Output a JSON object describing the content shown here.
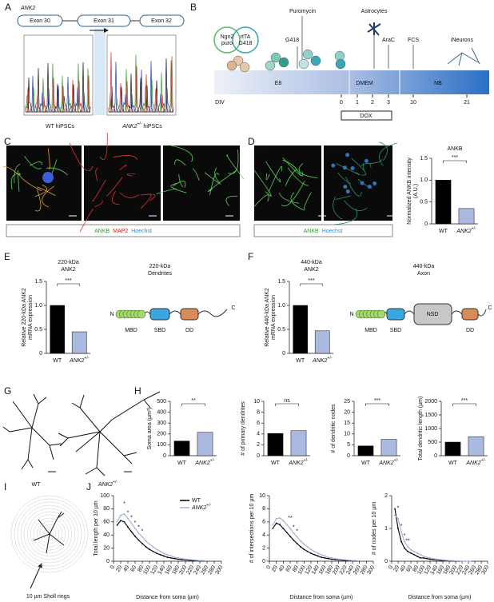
{
  "figure": {
    "panel_labels": [
      "A",
      "B",
      "C",
      "D",
      "E",
      "F",
      "G",
      "H",
      "I",
      "J"
    ],
    "a": {
      "gene": "ANK2",
      "exons": [
        "Exon 30",
        "Exon 31",
        "Exon 32"
      ],
      "captions": [
        "WT hiPSCs",
        {
          "name": "ANK2",
          "sup": "+/-",
          "rest": " hiPSCs"
        }
      ]
    },
    "b": {
      "plasmids": [
        [
          "Ngn2",
          "puro"
        ],
        [
          "rtTA",
          "G418"
        ]
      ],
      "treatments": [
        "Puromycin",
        "G418",
        "Astrocytes",
        "AraC",
        "FCS",
        "iNeurons"
      ],
      "media": [
        "E8",
        "DMEM",
        "NB"
      ],
      "div_label": "DIV",
      "days": [
        0,
        1,
        2,
        3,
        10,
        21
      ],
      "dox": "DOX"
    },
    "c": {
      "genotype": "WT",
      "stain": [
        "ANKB",
        "MAP2",
        "Hoechst"
      ]
    },
    "d": {
      "genotypes": [
        "WT",
        {
          "name": "ANK2",
          "sup": "+/-"
        }
      ],
      "stain": [
        "ANKB",
        "Hoechst"
      ]
    },
    "e": {
      "diagram_title": [
        "220-kDa",
        "Dendrites"
      ],
      "termini": [
        "N",
        "C"
      ],
      "domains": [
        "MBD",
        "SBD",
        "DD"
      ]
    },
    "f": {
      "diagram_title": [
        "440-kDa",
        "Axon"
      ],
      "termini": [
        "N",
        "C"
      ],
      "domains": [
        "MBD",
        "SBD",
        "NSD",
        "DD"
      ]
    },
    "g": {
      "genotypes": [
        "WT",
        {
          "name": "ANK2",
          "sup": "+/-"
        }
      ]
    },
    "i": {
      "caption": "10 µm Sholl rings"
    }
  },
  "chart_data": [
    {
      "type": "bar",
      "title": "ANKB",
      "ylabel": [
        "Normalized ANKB intensity",
        "(A.U.)"
      ],
      "categories": [
        "WT",
        {
          "name": "ANK2",
          "sup": "+/-"
        }
      ],
      "values": [
        1.0,
        0.35
      ],
      "colors": [
        "#000000",
        "#aab9e0"
      ],
      "ylim": [
        0,
        1.5
      ],
      "yticks": [
        0,
        0.5,
        {
          "value": 1,
          "label": "1.0"
        },
        1.5
      ],
      "sig": "***"
    },
    {
      "type": "bar",
      "title": [
        "220-kDa",
        "ANK2"
      ],
      "ylabel": [
        "Relative 220-kDa ANK2",
        "mRNA expression"
      ],
      "categories": [
        "WT",
        {
          "name": "ANK2",
          "sup": "+/-"
        }
      ],
      "values": [
        1.0,
        0.45
      ],
      "colors": [
        "#000000",
        "#aab9e0"
      ],
      "ylim": [
        0,
        1.5
      ],
      "yticks": [
        0,
        0.5,
        {
          "value": 1,
          "label": "1.0"
        },
        1.5
      ],
      "sig": "***"
    },
    {
      "type": "bar",
      "title": [
        "440-kDa",
        "ANK2"
      ],
      "ylabel": [
        "Relative 440-kDa ANK2",
        "mRNA expression"
      ],
      "categories": [
        "WT",
        {
          "name": "ANK2",
          "sup": "+/-"
        }
      ],
      "values": [
        1.0,
        0.47
      ],
      "colors": [
        "#000000",
        "#aab9e0"
      ],
      "ylim": [
        0,
        1.5
      ],
      "yticks": [
        0,
        0.5,
        {
          "value": 1,
          "label": "1.0"
        },
        1.5
      ],
      "sig": "***"
    },
    {
      "type": "bar",
      "ylabel": "Soma area (µm²)",
      "categories": [
        "WT",
        {
          "name": "ANK2",
          "sup": "+/-"
        }
      ],
      "values": [
        135,
        215
      ],
      "colors": [
        "#000000",
        "#aab9e0"
      ],
      "ylim": [
        0,
        500
      ],
      "yticks": [
        0,
        100,
        200,
        300,
        400,
        500
      ],
      "sig": "**"
    },
    {
      "type": "bar",
      "ylabel": "# of primary dendrites",
      "categories": [
        "WT",
        {
          "name": "ANK2",
          "sup": "+/-"
        }
      ],
      "values": [
        4.1,
        4.6
      ],
      "colors": [
        "#000000",
        "#aab9e0"
      ],
      "ylim": [
        0,
        10
      ],
      "yticks": [
        0,
        2,
        4,
        6,
        8,
        10
      ],
      "sig": "ns"
    },
    {
      "type": "bar",
      "ylabel": "# of dendritic nodes",
      "categories": [
        "WT",
        {
          "name": "ANK2",
          "sup": "+/-"
        }
      ],
      "values": [
        4.5,
        7.5
      ],
      "colors": [
        "#000000",
        "#aab9e0"
      ],
      "ylim": [
        0,
        25
      ],
      "yticks": [
        0,
        5,
        10,
        15,
        20,
        25
      ],
      "sig": "***"
    },
    {
      "type": "bar",
      "ylabel": "Total dendritic length (µm)",
      "categories": [
        "WT",
        {
          "name": "ANK2",
          "sup": "+/-"
        }
      ],
      "values": [
        500,
        700
      ],
      "colors": [
        "#000000",
        "#aab9e0"
      ],
      "ylim": [
        0,
        2000
      ],
      "yticks": [
        0,
        500,
        1000,
        1500,
        2000
      ],
      "sig": "***"
    },
    {
      "type": "line",
      "ylabel": "Total length per 10 µm",
      "xlabel": "Distance from soma (µm)",
      "legend": true,
      "x": [
        10,
        20,
        30,
        40,
        50,
        60,
        70,
        80,
        90,
        100,
        110,
        120,
        130,
        140,
        150,
        160,
        170,
        180,
        190,
        200,
        210,
        220,
        230,
        240,
        250
      ],
      "series": [
        {
          "name": "WT",
          "color": "#000000",
          "values": [
            55,
            62,
            60,
            52,
            45,
            38,
            32,
            27,
            22,
            18,
            15,
            12,
            10,
            8,
            6,
            5,
            4,
            3,
            2.5,
            2,
            1.5,
            1,
            1,
            0.5,
            0.5
          ]
        },
        {
          "name": {
            "name": "ANK2",
            "sup": "+/-"
          },
          "color": "#9fb0da",
          "values": [
            60,
            70,
            72,
            65,
            58,
            50,
            43,
            37,
            31,
            26,
            22,
            18,
            15,
            12,
            10,
            8,
            6,
            5,
            4,
            3,
            2.5,
            2,
            1.5,
            1,
            1
          ]
        }
      ],
      "xlim": [
        0,
        300
      ],
      "xticks": [
        0,
        20,
        40,
        60,
        80,
        100,
        120,
        140,
        160,
        180,
        200,
        220,
        240,
        260,
        280,
        300
      ],
      "ylim": [
        0,
        100
      ],
      "yticks": [
        0,
        20,
        40,
        60,
        80,
        100
      ],
      "sig": [
        "*",
        "*",
        "*",
        "*",
        "*",
        "*"
      ]
    },
    {
      "type": "line",
      "ylabel": "# of intersections per 10 µm",
      "xlabel": "Distance from soma (µm)",
      "x": [
        10,
        20,
        30,
        40,
        50,
        60,
        70,
        80,
        90,
        100,
        110,
        120,
        130,
        140,
        150,
        160,
        170,
        180,
        190,
        200,
        210,
        220,
        230,
        240,
        250
      ],
      "series": [
        {
          "name": "WT",
          "color": "#000000",
          "values": [
            5,
            5.8,
            5.6,
            5,
            4.4,
            3.8,
            3.2,
            2.7,
            2.2,
            1.8,
            1.5,
            1.2,
            1,
            0.8,
            0.6,
            0.5,
            0.4,
            0.3,
            0.25,
            0.2,
            0.15,
            0.1,
            0.1,
            0.05,
            0.05
          ]
        },
        {
          "name": {
            "name": "ANK2",
            "sup": "+/-"
          },
          "color": "#9fb0da",
          "values": [
            5.5,
            6.5,
            6.6,
            6.2,
            5.6,
            5,
            4.3,
            3.7,
            3.1,
            2.6,
            2.2,
            1.8,
            1.5,
            1.2,
            1,
            0.8,
            0.6,
            0.5,
            0.4,
            0.3,
            0.25,
            0.2,
            0.15,
            0.1,
            0.1
          ]
        }
      ],
      "xlim": [
        0,
        300
      ],
      "xticks": [
        0,
        20,
        40,
        60,
        80,
        100,
        120,
        140,
        160,
        180,
        200,
        220,
        240,
        260,
        280,
        300
      ],
      "ylim": [
        0,
        10
      ],
      "yticks": [
        0,
        2,
        4,
        6,
        8,
        10
      ],
      "sig": [
        "**",
        "*",
        "*"
      ]
    },
    {
      "type": "line",
      "ylabel": "# of nodes per 10 µm",
      "xlabel": "Distance from soma (µm)",
      "x": [
        10,
        20,
        30,
        40,
        50,
        60,
        70,
        80,
        90,
        100,
        110,
        120,
        130,
        140,
        150,
        160,
        170,
        180,
        190,
        200,
        210,
        220,
        230,
        240,
        250
      ],
      "series": [
        {
          "name": "WT",
          "color": "#000000",
          "values": [
            1.6,
            1.0,
            0.6,
            0.4,
            0.3,
            0.25,
            0.2,
            0.15,
            0.1,
            0.1,
            0.08,
            0.06,
            0.05,
            0.04,
            0.03,
            0.02,
            0.02,
            0.01,
            0.01,
            0,
            0,
            0,
            0,
            0,
            0
          ]
        },
        {
          "name": {
            "name": "ANK2",
            "sup": "+/-"
          },
          "color": "#9fb0da",
          "values": [
            1.4,
            1.3,
            0.9,
            0.6,
            0.45,
            0.35,
            0.3,
            0.25,
            0.2,
            0.15,
            0.12,
            0.1,
            0.08,
            0.06,
            0.05,
            0.04,
            0.03,
            0.02,
            0.02,
            0.01,
            0.01,
            0,
            0,
            0,
            0
          ]
        }
      ],
      "xlim": [
        0,
        300
      ],
      "xticks": [
        0,
        20,
        40,
        60,
        80,
        100,
        120,
        140,
        160,
        180,
        200,
        220,
        240,
        260,
        280,
        300
      ],
      "ylim": [
        0,
        2
      ],
      "yticks": [
        0,
        1,
        2
      ],
      "sig": [
        "*",
        "*",
        "*",
        "**"
      ]
    }
  ]
}
